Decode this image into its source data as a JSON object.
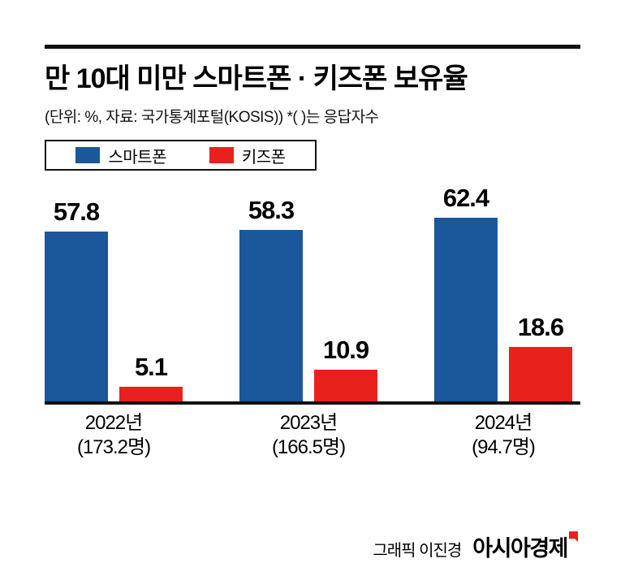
{
  "header": {
    "title": "만 10대 미만 스마트폰 · 키즈폰 보유율",
    "subtitle": "(단위: %, 자료: 국가통계포털(KOSIS)) *( )는 응답자수"
  },
  "legend": [
    {
      "label": "스마트폰",
      "color": "#1a579b"
    },
    {
      "label": "키즈폰",
      "color": "#e8211d"
    }
  ],
  "chart_data": {
    "type": "bar",
    "title": "만 10대 미만 스마트폰 · 키즈폰 보유율",
    "unit": "%",
    "source": "국가통계포털(KOSIS)",
    "categories": [
      "2022년",
      "2023년",
      "2024년"
    ],
    "category_counts": [
      "(173.2명)",
      "(166.5명)",
      "(94.7명)"
    ],
    "series": [
      {
        "name": "스마트폰",
        "color": "#1a579b",
        "values": [
          57.8,
          58.3,
          62.4
        ]
      },
      {
        "name": "키즈폰",
        "color": "#e8211d",
        "values": [
          5.1,
          10.9,
          18.6
        ]
      }
    ],
    "ylim": [
      0,
      66
    ],
    "grid": false,
    "legend_position": "top-left"
  },
  "footer": {
    "credit": "그래픽 이진경",
    "brand": "아시아경제",
    "brand_mark_color": "#e8211d"
  }
}
